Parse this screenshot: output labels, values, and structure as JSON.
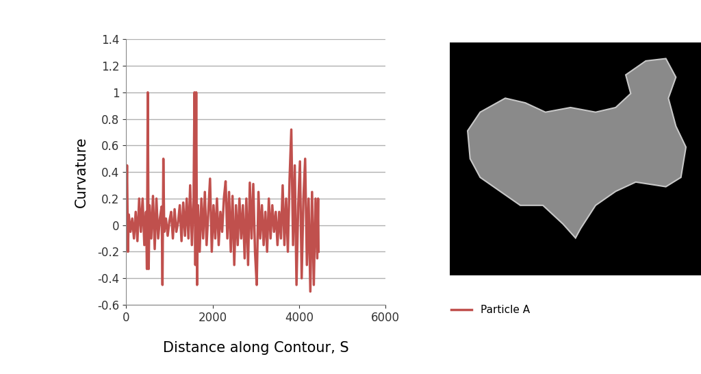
{
  "chart_data": {
    "type": "line",
    "x_label": "Distance along Contour, S",
    "y_label": "Curvature",
    "xlim": [
      0,
      6000
    ],
    "xticks": [
      0,
      2000,
      4000,
      6000
    ],
    "ylim": [
      -0.6,
      1.4
    ],
    "yticks": [
      -0.6,
      -0.4,
      -0.2,
      0,
      0.2,
      0.4,
      0.6,
      0.8,
      1,
      1.2,
      1.4
    ],
    "grid": true,
    "legend": "upper left",
    "x": [
      0,
      20,
      40,
      60,
      100,
      140,
      180,
      220,
      260,
      300,
      340,
      380,
      420,
      460,
      480,
      500,
      520,
      540,
      580,
      620,
      660,
      700,
      740,
      780,
      820,
      840,
      860,
      880,
      920,
      960,
      1000,
      1040,
      1080,
      1120,
      1160,
      1200,
      1240,
      1280,
      1320,
      1360,
      1400,
      1440,
      1480,
      1520,
      1560,
      1580,
      1600,
      1620,
      1640,
      1660,
      1700,
      1740,
      1780,
      1820,
      1860,
      1900,
      1940,
      1980,
      2020,
      2060,
      2100,
      2140,
      2180,
      2220,
      2260,
      2300,
      2340,
      2380,
      2420,
      2460,
      2500,
      2540,
      2580,
      2620,
      2660,
      2700,
      2740,
      2780,
      2820,
      2860,
      2900,
      2940,
      2980,
      3020,
      3060,
      3100,
      3140,
      3180,
      3220,
      3260,
      3300,
      3340,
      3380,
      3420,
      3460,
      3500,
      3540,
      3580,
      3620,
      3660,
      3700,
      3740,
      3780,
      3820,
      3860,
      3900,
      3940,
      3980,
      4020,
      4060,
      4100,
      4140,
      4180,
      4220,
      4260,
      4300,
      4340,
      4380,
      4420,
      4440,
      4450
    ],
    "series": [
      {
        "name": "Particle A",
        "color": "#c0504d",
        "values": [
          0.0,
          0.45,
          -0.2,
          0.08,
          -0.05,
          0.05,
          -0.1,
          0.1,
          -0.12,
          0.2,
          -0.05,
          0.2,
          -0.15,
          0.1,
          -0.33,
          1.0,
          -0.33,
          0.15,
          -0.1,
          0.22,
          -0.18,
          0.2,
          -0.1,
          0.05,
          0.14,
          -0.45,
          0.5,
          -0.05,
          0.05,
          -0.08,
          0.03,
          0.1,
          -0.1,
          0.12,
          -0.05,
          0.02,
          0.15,
          -0.12,
          0.17,
          -0.08,
          0.2,
          -0.1,
          0.3,
          -0.15,
          0.2,
          1.0,
          -0.3,
          1.0,
          -0.45,
          0.15,
          -0.2,
          0.2,
          -0.1,
          0.25,
          -0.15,
          0.1,
          0.35,
          -0.2,
          0.15,
          -0.1,
          0.2,
          -0.15,
          0.1,
          -0.05,
          0.2,
          0.33,
          -0.1,
          0.25,
          -0.2,
          0.22,
          -0.3,
          0.15,
          -0.15,
          0.2,
          -0.1,
          0.15,
          -0.25,
          0.2,
          -0.3,
          0.32,
          -0.1,
          0.31,
          -0.2,
          -0.45,
          0.25,
          -0.1,
          0.15,
          -0.15,
          0.1,
          -0.2,
          0.2,
          -0.1,
          0.15,
          -0.05,
          0.1,
          -0.15,
          0.1,
          -0.1,
          0.3,
          -0.15,
          0.2,
          -0.2,
          0.35,
          0.72,
          -0.15,
          0.45,
          -0.45,
          0.15,
          0.48,
          -0.4,
          0.2,
          0.5,
          -0.3,
          0.2,
          -0.5,
          0.25,
          -0.45,
          0.2,
          -0.25,
          0.2,
          -0.2
        ]
      }
    ]
  }
}
